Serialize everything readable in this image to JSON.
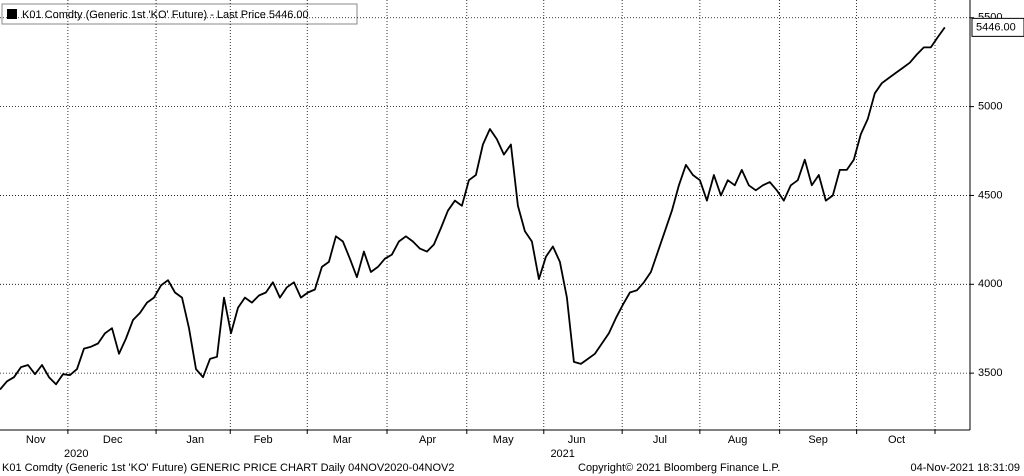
{
  "chart_data": {
    "type": "line",
    "title": "K01 Comdty (Generic 1st 'KO' Future) - Last Price 5446.00",
    "last_value_label": "5446.00",
    "color": "#000000",
    "grid": true,
    "values": [
      3408,
      3454,
      3477,
      3534,
      3546,
      3494,
      3546,
      3477,
      3437,
      3494,
      3489,
      3523,
      3638,
      3649,
      3667,
      3724,
      3753,
      3609,
      3695,
      3799,
      3839,
      3897,
      3925,
      3994,
      4023,
      3954,
      3925,
      3753,
      3523,
      3477,
      3580,
      3592,
      3925,
      3724,
      3868,
      3925,
      3897,
      3937,
      3954,
      4011,
      3925,
      3983,
      4011,
      3925,
      3954,
      3971,
      4098,
      4126,
      4270,
      4241,
      4144,
      4040,
      4184,
      4069,
      4098,
      4144,
      4167,
      4241,
      4270,
      4241,
      4201,
      4184,
      4224,
      4316,
      4414,
      4471,
      4442,
      4586,
      4615,
      4787,
      4874,
      4816,
      4730,
      4787,
      4442,
      4299,
      4241,
      4029,
      4155,
      4213,
      4126,
      3925,
      3563,
      3552,
      3580,
      3609,
      3667,
      3724,
      3810,
      3885,
      3954,
      3966,
      4011,
      4069,
      4184,
      4299,
      4414,
      4557,
      4672,
      4615,
      4586,
      4471,
      4615,
      4500,
      4586,
      4557,
      4644,
      4557,
      4529,
      4557,
      4575,
      4529,
      4471,
      4557,
      4586,
      4701,
      4557,
      4615,
      4471,
      4500,
      4644,
      4644,
      4701,
      4845,
      4931,
      5075,
      5132,
      5161,
      5190,
      5218,
      5247,
      5293,
      5333,
      5333,
      5391,
      5446
    ],
    "xlim": [
      0,
      138.6
    ],
    "ylim": [
      3180,
      5600
    ],
    "yticks": [
      3500,
      4000,
      4500,
      5000,
      5500
    ],
    "xgrid": [
      9.7,
      22.3,
      32.9,
      43.9,
      55.3,
      66.7,
      77.7,
      88.9,
      100,
      111.4,
      122.4,
      133.6
    ],
    "month_labels": [
      {
        "value": 5.1,
        "label": "Nov"
      },
      {
        "value": 16.1,
        "label": "Dec"
      },
      {
        "value": 27.9,
        "label": "Jan"
      },
      {
        "value": 37.6,
        "label": "Feb"
      },
      {
        "value": 48.9,
        "label": "Mar"
      },
      {
        "value": 61.1,
        "label": "Apr"
      },
      {
        "value": 71.9,
        "label": "May"
      },
      {
        "value": 82.4,
        "label": "Jun"
      },
      {
        "value": 94.3,
        "label": "Jul"
      },
      {
        "value": 105.4,
        "label": "Aug"
      },
      {
        "value": 116.9,
        "label": "Sep"
      },
      {
        "value": 128.1,
        "label": "Oct"
      }
    ],
    "year_labels": [
      {
        "value": 10.9,
        "label": "2020"
      },
      {
        "value": 80.4,
        "label": "2021"
      }
    ],
    "footer": {
      "description": "K01 Comdty (Generic 1st 'KO' Future) GENERIC PRICE CHART  Daily 04NOV2020-04NOV2",
      "copyright": "Copyright© 2021 Bloomberg Finance L.P.",
      "timestamp": "04-Nov-2021 18:31:09"
    }
  }
}
